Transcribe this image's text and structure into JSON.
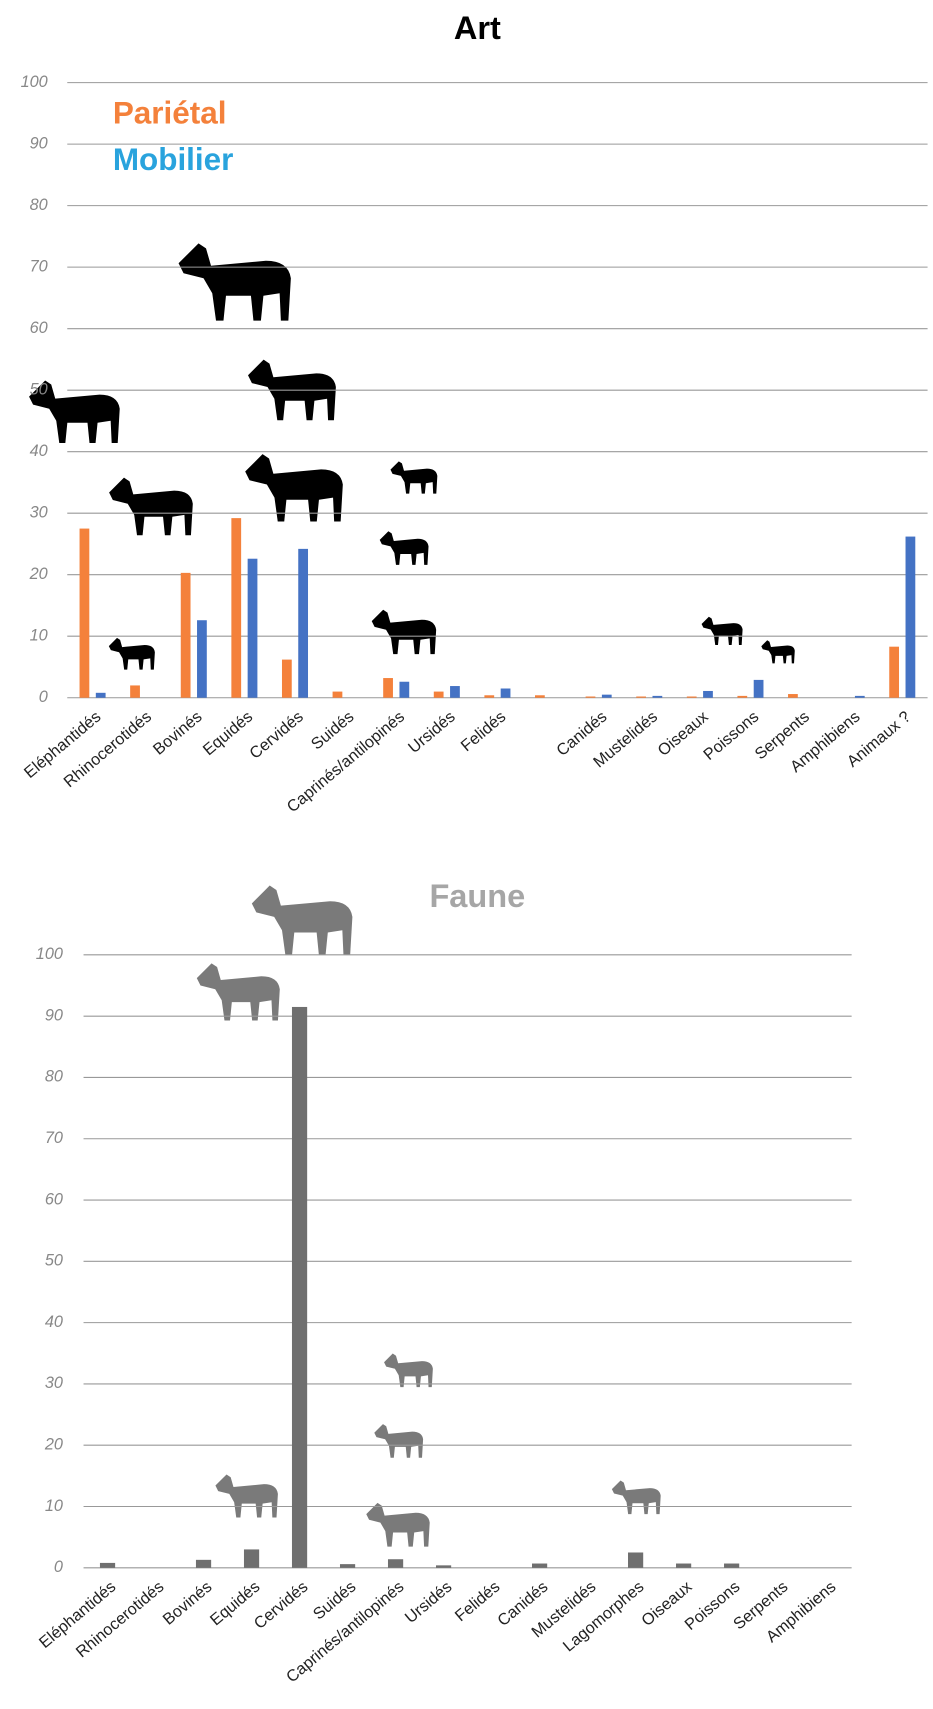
{
  "chart_data": [
    {
      "type": "bar",
      "title": "Art",
      "title_color": "#000000",
      "categories": [
        "Eléphantidés",
        "Rhinocerotidés",
        "Bovinés",
        "Equidés",
        "Cervidés",
        "Suidés",
        "Caprinés/antilopinés",
        "Ursidés",
        "Felidés",
        null,
        "Canidés",
        "Mustelidés",
        "Oiseaux",
        "Poissons",
        "Serpents",
        "Amphibiens",
        "Animaux ?"
      ],
      "series": [
        {
          "name": "Pariétal",
          "color": "#f4813b",
          "label_color": "#f4813b",
          "values": [
            27.5,
            2,
            20.3,
            29.2,
            6.2,
            1,
            3.2,
            1,
            0.4,
            0.4,
            0.2,
            0.2,
            0.2,
            0.3,
            0.6,
            0,
            8.3
          ]
        },
        {
          "name": "Mobilier",
          "color": "#4472c4",
          "label_color": "#29a3dd",
          "values": [
            0.8,
            0,
            12.6,
            22.6,
            24.2,
            0,
            2.6,
            1.9,
            1.5,
            0,
            0.5,
            0.3,
            1.1,
            2.9,
            0,
            0.3,
            26.2
          ]
        }
      ],
      "ylim": [
        0,
        100
      ],
      "yticks": [
        0,
        10,
        20,
        30,
        40,
        50,
        60,
        70,
        80,
        90,
        100
      ],
      "grid": true,
      "legend": "top-left"
    },
    {
      "type": "bar",
      "title": "Faune",
      "title_color": "#a6a6a6",
      "categories": [
        "Eléphantidés",
        "Rhinocerotidés",
        "Bovinés",
        "Equidés",
        "Cervidés",
        "Suidés",
        "Caprinés/antilopinés",
        "Ursidés",
        "Felidés",
        "Canidés",
        "Mustelidés",
        "Lagomorphes",
        "Oiseaux",
        "Poissons",
        "Serpents",
        "Amphibiens"
      ],
      "values": [
        0.8,
        0,
        1.3,
        3,
        91.5,
        0.6,
        1.4,
        0.4,
        0,
        0.7,
        0,
        2.5,
        0.7,
        0.7,
        0,
        0
      ],
      "color": "#6f6f6f",
      "ylim": [
        0,
        100
      ],
      "yticks": [
        0,
        10,
        20,
        30,
        40,
        50,
        60,
        70,
        80,
        90,
        100
      ],
      "grid": true
    }
  ]
}
